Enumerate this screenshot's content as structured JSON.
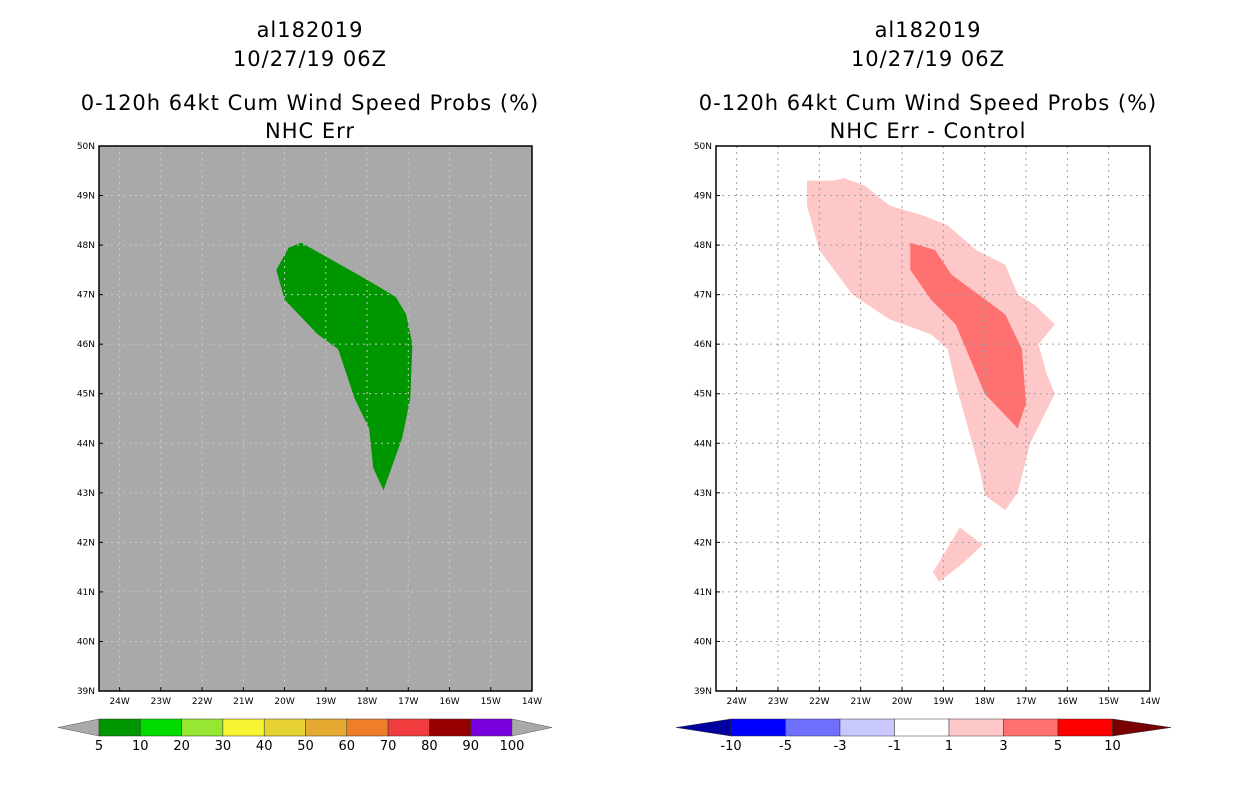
{
  "left_panel": {
    "storm_id": "al182019",
    "datetime": "10/27/19 06Z",
    "product": "0-120h 64kt Cum Wind Speed Probs (%)",
    "subtitle": "NHC Err",
    "background_color": "#a9a9a9",
    "colorbar": {
      "colors": [
        "#009600",
        "#00dc00",
        "#96e632",
        "#f5f532",
        "#e6d232",
        "#e6aa32",
        "#f07e28",
        "#f03c3c",
        "#960000",
        "#7800dc"
      ],
      "labels": [
        "5",
        "10",
        "20",
        "30",
        "40",
        "50",
        "60",
        "70",
        "80",
        "90",
        "100"
      ],
      "end_color": "#a9a9a9"
    }
  },
  "right_panel": {
    "storm_id": "al182019",
    "datetime": "10/27/19 06Z",
    "product": "0-120h 64kt Cum Wind Speed Probs (%)",
    "subtitle": "NHC Err - Control",
    "background_color": "#ffffff",
    "colorbar": {
      "colors": [
        "#0000ff",
        "#7070ff",
        "#c8c8ff",
        "#ffffff",
        "#ffc8c8",
        "#ff7070",
        "#ff0000"
      ],
      "labels": [
        "-10",
        "-5",
        "-3",
        "-1",
        "1",
        "3",
        "5",
        "10"
      ],
      "left_end_color": "#0000a0",
      "right_end_color": "#780000"
    }
  },
  "axes": {
    "lat_labels": [
      "39N",
      "40N",
      "41N",
      "42N",
      "43N",
      "44N",
      "45N",
      "46N",
      "47N",
      "48N",
      "49N",
      "50N"
    ],
    "lon_labels": [
      "24W",
      "23W",
      "22W",
      "21W",
      "20W",
      "19W",
      "18W",
      "17W",
      "16W",
      "15W",
      "14W"
    ]
  },
  "map_data": {
    "lon_range": [
      -24.5,
      -14
    ],
    "lat_range": [
      39,
      50
    ],
    "left_fill": {
      "color": "#009600",
      "polygon": [
        [
          -19.6,
          48.05
        ],
        [
          -18.0,
          47.3
        ],
        [
          -17.3,
          46.95
        ],
        [
          -17.05,
          46.6
        ],
        [
          -16.9,
          46.0
        ],
        [
          -16.95,
          44.9
        ],
        [
          -17.15,
          44.1
        ],
        [
          -17.6,
          43.05
        ],
        [
          -17.85,
          43.5
        ],
        [
          -17.95,
          44.3
        ],
        [
          -18.3,
          44.9
        ],
        [
          -18.7,
          45.9
        ],
        [
          -19.2,
          46.2
        ],
        [
          -20.0,
          46.9
        ],
        [
          -20.2,
          47.5
        ],
        [
          -19.9,
          47.95
        ]
      ]
    },
    "right_fills": [
      {
        "level": "1-3",
        "color": "#ffc8c8",
        "polygon": [
          [
            -22.3,
            49.3
          ],
          [
            -21.7,
            49.3
          ],
          [
            -21.4,
            49.35
          ],
          [
            -20.9,
            49.2
          ],
          [
            -20.3,
            48.8
          ],
          [
            -19.5,
            48.6
          ],
          [
            -18.9,
            48.4
          ],
          [
            -18.2,
            47.9
          ],
          [
            -17.5,
            47.6
          ],
          [
            -17.2,
            47.0
          ],
          [
            -16.8,
            46.8
          ],
          [
            -16.3,
            46.4
          ],
          [
            -16.7,
            46.0
          ],
          [
            -16.5,
            45.4
          ],
          [
            -16.3,
            45.0
          ],
          [
            -16.6,
            44.5
          ],
          [
            -16.9,
            44.0
          ],
          [
            -17.2,
            43.0
          ],
          [
            -17.5,
            42.65
          ],
          [
            -18.0,
            42.95
          ],
          [
            -18.1,
            43.4
          ],
          [
            -18.4,
            44.3
          ],
          [
            -18.7,
            45.2
          ],
          [
            -18.9,
            45.9
          ],
          [
            -19.3,
            46.2
          ],
          [
            -20.3,
            46.5
          ],
          [
            -21.2,
            47.0
          ],
          [
            -22.0,
            47.9
          ],
          [
            -22.3,
            48.8
          ]
        ]
      },
      {
        "level": "1-3",
        "color": "#ffc8c8",
        "polygon": [
          [
            -19.25,
            41.4
          ],
          [
            -18.6,
            42.3
          ],
          [
            -18.05,
            41.95
          ],
          [
            -18.5,
            41.6
          ],
          [
            -19.1,
            41.2
          ]
        ]
      },
      {
        "level": "3-5",
        "color": "#ff7070",
        "polygon": [
          [
            -19.8,
            48.05
          ],
          [
            -19.2,
            47.9
          ],
          [
            -18.8,
            47.4
          ],
          [
            -17.9,
            46.85
          ],
          [
            -17.5,
            46.6
          ],
          [
            -17.1,
            45.9
          ],
          [
            -17.0,
            44.8
          ],
          [
            -17.2,
            44.3
          ],
          [
            -18.0,
            45.0
          ],
          [
            -18.3,
            45.6
          ],
          [
            -18.7,
            46.4
          ],
          [
            -19.3,
            46.9
          ],
          [
            -19.8,
            47.5
          ]
        ]
      }
    ]
  }
}
